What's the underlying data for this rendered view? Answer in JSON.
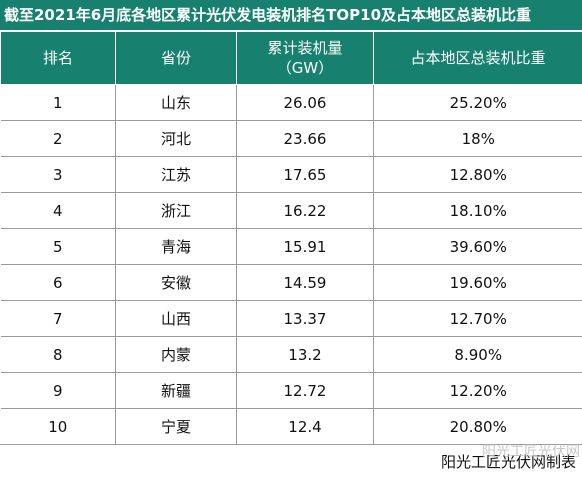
{
  "title": "截至2021年6月底各地区累计光伏发电装机排名TOP10及占本地区总装机比重",
  "table": {
    "headers": [
      "排名",
      "省份",
      "累计装机量\n（GW）",
      "占本地区总装机比重"
    ],
    "rows": [
      [
        "1",
        "山东",
        "26.06",
        "25.20%"
      ],
      [
        "2",
        "河北",
        "23.66",
        "18%"
      ],
      [
        "3",
        "江苏",
        "17.65",
        "12.80%"
      ],
      [
        "4",
        "浙江",
        "16.22",
        "18.10%"
      ],
      [
        "5",
        "青海",
        "15.91",
        "39.60%"
      ],
      [
        "6",
        "安徽",
        "14.59",
        "19.60%"
      ],
      [
        "7",
        "山西",
        "13.37",
        "12.70%"
      ],
      [
        "8",
        "内蒙",
        "13.2",
        "8.90%"
      ],
      [
        "9",
        "新疆",
        "12.72",
        "12.20%"
      ],
      [
        "10",
        "宁夏",
        "12.4",
        "20.80%"
      ]
    ]
  },
  "footer": {
    "note": "阳光工匠光伏网制表",
    "watermark": "阳光工匠光伏网"
  },
  "colors": {
    "header_bg": "#17806f",
    "header_text": "#ffffff",
    "grid": "#9a9a9a"
  }
}
